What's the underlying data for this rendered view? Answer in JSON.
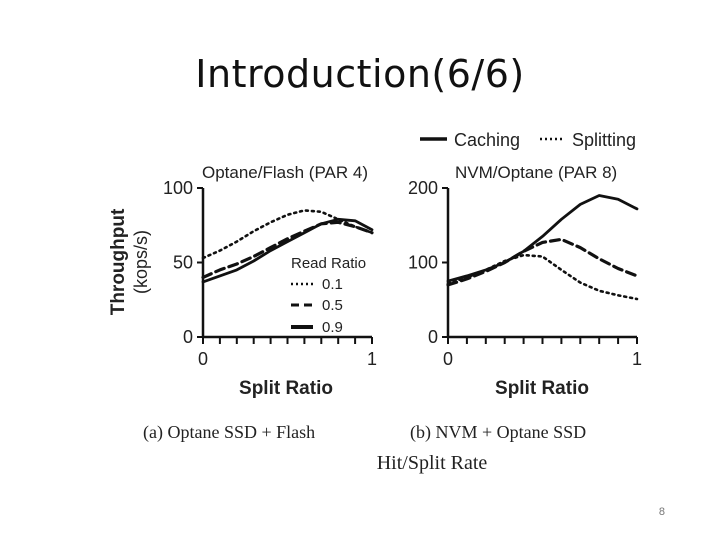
{
  "slide": {
    "title": "Introduction(6/6)",
    "page_number": "8",
    "partial_caption": "Hit/Split Rate"
  },
  "top_legend": {
    "caching": "Caching",
    "splitting": "Splitting"
  },
  "colors": {
    "ink": "#111111",
    "background": "#ffffff"
  },
  "chart_data": [
    {
      "type": "line",
      "title": "Optane/Flash (PAR 4)",
      "caption": "(a) Optane SSD + Flash",
      "xlabel": "Split Ratio",
      "ylabel": "Throughput",
      "ylabel_unit": "(kops/s)",
      "xlim": [
        0,
        1
      ],
      "ylim": [
        0,
        100
      ],
      "yticks": [
        0,
        50,
        100
      ],
      "xtick_labels": [
        "0",
        "1"
      ],
      "legend": {
        "title": "Read Ratio",
        "placement": "center-right"
      },
      "series": [
        {
          "name": "0.1",
          "style": "dotted",
          "x": [
            0,
            0.1,
            0.2,
            0.3,
            0.4,
            0.5,
            0.6,
            0.7,
            0.8,
            0.9,
            1.0
          ],
          "y": [
            53,
            58,
            64,
            71,
            77,
            82,
            85,
            84,
            79,
            74,
            70
          ]
        },
        {
          "name": "0.5",
          "style": "dashed",
          "x": [
            0,
            0.1,
            0.2,
            0.3,
            0.4,
            0.5,
            0.6,
            0.7,
            0.8,
            0.9,
            1.0
          ],
          "y": [
            40,
            45,
            49,
            54,
            60,
            66,
            71,
            76,
            77,
            74,
            70
          ]
        },
        {
          "name": "0.9",
          "style": "solid",
          "x": [
            0,
            0.1,
            0.2,
            0.3,
            0.4,
            0.5,
            0.6,
            0.7,
            0.8,
            0.9,
            1.0
          ],
          "y": [
            37,
            41,
            45,
            51,
            58,
            64,
            70,
            76,
            79,
            78,
            72
          ]
        }
      ]
    },
    {
      "type": "line",
      "title": "NVM/Optane (PAR 8)",
      "caption": "(b) NVM + Optane SSD",
      "xlabel": "Split Ratio",
      "xlim": [
        0,
        1
      ],
      "ylim": [
        0,
        200
      ],
      "yticks": [
        0,
        100,
        200
      ],
      "xtick_labels": [
        "0",
        "1"
      ],
      "series": [
        {
          "name": "Caching",
          "style": "solid",
          "x": [
            0,
            0.1,
            0.2,
            0.3,
            0.4,
            0.5,
            0.6,
            0.7,
            0.8,
            0.9,
            1.0
          ],
          "y": [
            75,
            82,
            90,
            100,
            115,
            135,
            158,
            178,
            190,
            185,
            172
          ]
        },
        {
          "name": "",
          "style": "dashed",
          "x": [
            0,
            0.1,
            0.2,
            0.3,
            0.4,
            0.5,
            0.6,
            0.7,
            0.8,
            0.9,
            1.0
          ],
          "y": [
            70,
            78,
            88,
            100,
            115,
            127,
            131,
            120,
            105,
            92,
            82
          ]
        },
        {
          "name": "Splitting",
          "style": "dotted",
          "x": [
            0,
            0.1,
            0.2,
            0.3,
            0.4,
            0.5,
            0.6,
            0.7,
            0.8,
            0.9,
            1.0
          ],
          "y": [
            72,
            80,
            90,
            102,
            110,
            108,
            90,
            73,
            62,
            56,
            51
          ]
        }
      ]
    }
  ]
}
